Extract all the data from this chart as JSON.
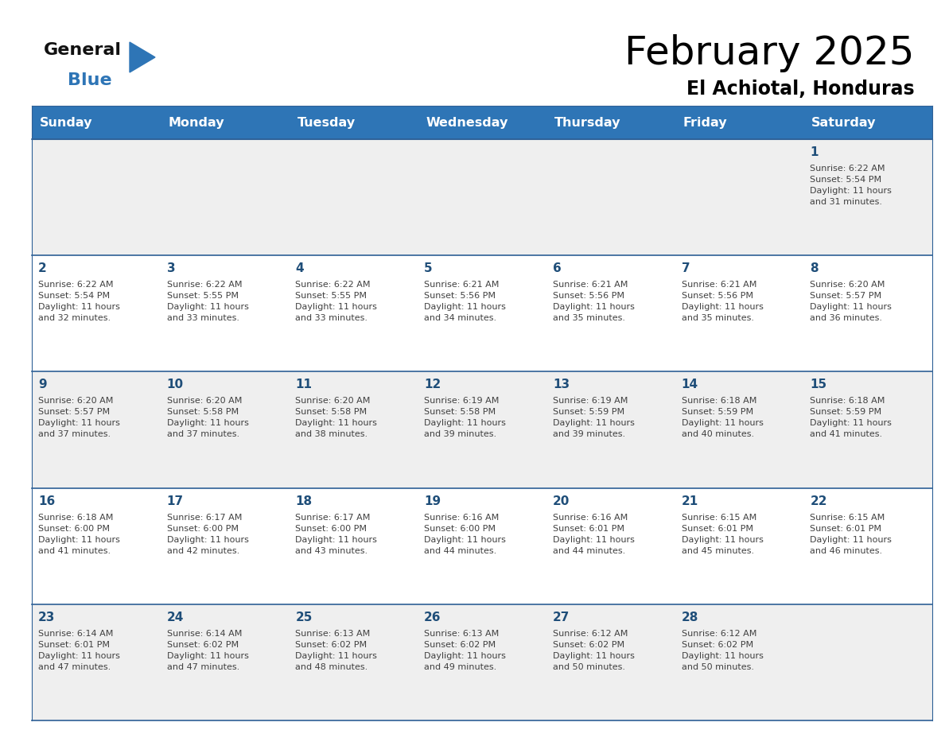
{
  "title": "February 2025",
  "subtitle": "El Achiotal, Honduras",
  "days_of_week": [
    "Sunday",
    "Monday",
    "Tuesday",
    "Wednesday",
    "Thursday",
    "Friday",
    "Saturday"
  ],
  "header_bg": "#2E75B6",
  "header_text": "#FFFFFF",
  "row_bg_odd": "#EFEFEF",
  "row_bg_even": "#FFFFFF",
  "separator_color": "#2E6096",
  "day_number_color": "#1F4E79",
  "cell_text_color": "#404040",
  "title_color": "#000000",
  "subtitle_color": "#000000",
  "logo_general_color": "#111111",
  "logo_blue_color": "#2E75B6",
  "calendar_data": [
    [
      null,
      null,
      null,
      null,
      null,
      null,
      {
        "day": 1,
        "sunrise": "6:22 AM",
        "sunset": "5:54 PM",
        "daylight": "11 hours\nand 31 minutes."
      }
    ],
    [
      {
        "day": 2,
        "sunrise": "6:22 AM",
        "sunset": "5:54 PM",
        "daylight": "11 hours\nand 32 minutes."
      },
      {
        "day": 3,
        "sunrise": "6:22 AM",
        "sunset": "5:55 PM",
        "daylight": "11 hours\nand 33 minutes."
      },
      {
        "day": 4,
        "sunrise": "6:22 AM",
        "sunset": "5:55 PM",
        "daylight": "11 hours\nand 33 minutes."
      },
      {
        "day": 5,
        "sunrise": "6:21 AM",
        "sunset": "5:56 PM",
        "daylight": "11 hours\nand 34 minutes."
      },
      {
        "day": 6,
        "sunrise": "6:21 AM",
        "sunset": "5:56 PM",
        "daylight": "11 hours\nand 35 minutes."
      },
      {
        "day": 7,
        "sunrise": "6:21 AM",
        "sunset": "5:56 PM",
        "daylight": "11 hours\nand 35 minutes."
      },
      {
        "day": 8,
        "sunrise": "6:20 AM",
        "sunset": "5:57 PM",
        "daylight": "11 hours\nand 36 minutes."
      }
    ],
    [
      {
        "day": 9,
        "sunrise": "6:20 AM",
        "sunset": "5:57 PM",
        "daylight": "11 hours\nand 37 minutes."
      },
      {
        "day": 10,
        "sunrise": "6:20 AM",
        "sunset": "5:58 PM",
        "daylight": "11 hours\nand 37 minutes."
      },
      {
        "day": 11,
        "sunrise": "6:20 AM",
        "sunset": "5:58 PM",
        "daylight": "11 hours\nand 38 minutes."
      },
      {
        "day": 12,
        "sunrise": "6:19 AM",
        "sunset": "5:58 PM",
        "daylight": "11 hours\nand 39 minutes."
      },
      {
        "day": 13,
        "sunrise": "6:19 AM",
        "sunset": "5:59 PM",
        "daylight": "11 hours\nand 39 minutes."
      },
      {
        "day": 14,
        "sunrise": "6:18 AM",
        "sunset": "5:59 PM",
        "daylight": "11 hours\nand 40 minutes."
      },
      {
        "day": 15,
        "sunrise": "6:18 AM",
        "sunset": "5:59 PM",
        "daylight": "11 hours\nand 41 minutes."
      }
    ],
    [
      {
        "day": 16,
        "sunrise": "6:18 AM",
        "sunset": "6:00 PM",
        "daylight": "11 hours\nand 41 minutes."
      },
      {
        "day": 17,
        "sunrise": "6:17 AM",
        "sunset": "6:00 PM",
        "daylight": "11 hours\nand 42 minutes."
      },
      {
        "day": 18,
        "sunrise": "6:17 AM",
        "sunset": "6:00 PM",
        "daylight": "11 hours\nand 43 minutes."
      },
      {
        "day": 19,
        "sunrise": "6:16 AM",
        "sunset": "6:00 PM",
        "daylight": "11 hours\nand 44 minutes."
      },
      {
        "day": 20,
        "sunrise": "6:16 AM",
        "sunset": "6:01 PM",
        "daylight": "11 hours\nand 44 minutes."
      },
      {
        "day": 21,
        "sunrise": "6:15 AM",
        "sunset": "6:01 PM",
        "daylight": "11 hours\nand 45 minutes."
      },
      {
        "day": 22,
        "sunrise": "6:15 AM",
        "sunset": "6:01 PM",
        "daylight": "11 hours\nand 46 minutes."
      }
    ],
    [
      {
        "day": 23,
        "sunrise": "6:14 AM",
        "sunset": "6:01 PM",
        "daylight": "11 hours\nand 47 minutes."
      },
      {
        "day": 24,
        "sunrise": "6:14 AM",
        "sunset": "6:02 PM",
        "daylight": "11 hours\nand 47 minutes."
      },
      {
        "day": 25,
        "sunrise": "6:13 AM",
        "sunset": "6:02 PM",
        "daylight": "11 hours\nand 48 minutes."
      },
      {
        "day": 26,
        "sunrise": "6:13 AM",
        "sunset": "6:02 PM",
        "daylight": "11 hours\nand 49 minutes."
      },
      {
        "day": 27,
        "sunrise": "6:12 AM",
        "sunset": "6:02 PM",
        "daylight": "11 hours\nand 50 minutes."
      },
      {
        "day": 28,
        "sunrise": "6:12 AM",
        "sunset": "6:02 PM",
        "daylight": "11 hours\nand 50 minutes."
      },
      null
    ]
  ]
}
